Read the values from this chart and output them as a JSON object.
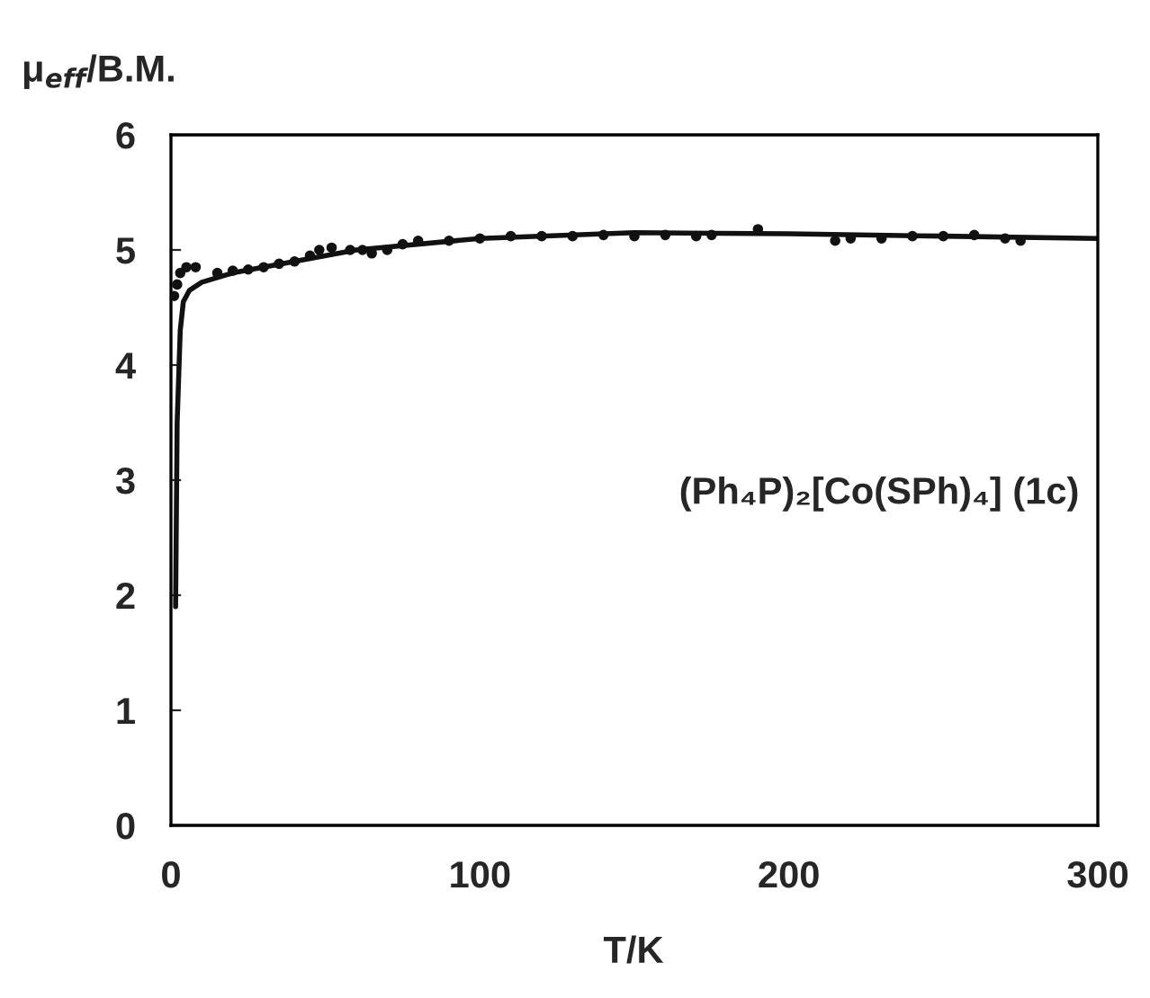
{
  "chart_data": {
    "type": "scatter",
    "ylabel": "μ$_{eff}$/B.M.",
    "xlabel": "T/K",
    "annotations": [
      "(Ph₄P)₂[Co(SPh)₄] (1c)"
    ],
    "xlim": [
      0,
      300
    ],
    "xticks": [
      0,
      100,
      200,
      300
    ],
    "ylim": [
      0,
      6
    ],
    "yticks": [
      0,
      1,
      2,
      3,
      4,
      5,
      6
    ],
    "grid": false,
    "legend": false,
    "series": [
      {
        "color": "#111111",
        "marker": "circle",
        "x": [
          1,
          2,
          3,
          5,
          8,
          15,
          20,
          25,
          30,
          35,
          40,
          45,
          48,
          52,
          58,
          62,
          65,
          70,
          75,
          80,
          90,
          100,
          110,
          120,
          130,
          140,
          150,
          160,
          170,
          175,
          190,
          215,
          220,
          230,
          240,
          250,
          260,
          270,
          275
        ],
        "values": [
          4.6,
          4.7,
          4.8,
          4.85,
          4.85,
          4.8,
          4.82,
          4.83,
          4.85,
          4.88,
          4.9,
          4.95,
          5.0,
          5.02,
          5.0,
          5.0,
          4.97,
          5.0,
          5.05,
          5.08,
          5.08,
          5.1,
          5.12,
          5.12,
          5.12,
          5.13,
          5.12,
          5.13,
          5.12,
          5.13,
          5.18,
          5.08,
          5.1,
          5.1,
          5.12,
          5.12,
          5.13,
          5.1,
          5.08
        ]
      },
      {
        "type": "line",
        "color": "#111111",
        "marker": "none",
        "line_style": "solid",
        "x": [
          1.5,
          2,
          3,
          4,
          6,
          10,
          20,
          40,
          60,
          100,
          150,
          200,
          250,
          300
        ],
        "values": [
          1.9,
          3.5,
          4.3,
          4.55,
          4.65,
          4.72,
          4.8,
          4.9,
          5.0,
          5.1,
          5.15,
          5.14,
          5.12,
          5.1
        ]
      }
    ]
  }
}
